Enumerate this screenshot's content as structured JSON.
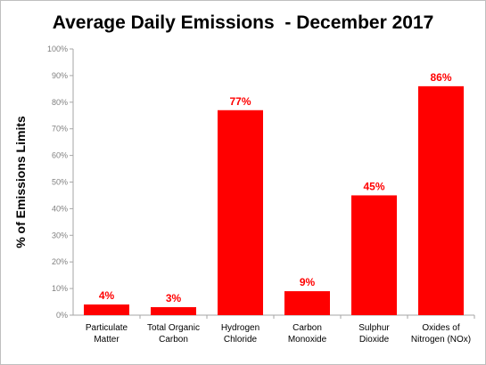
{
  "chart_data": {
    "type": "bar",
    "title": "Average Daily Emissions  - December 2017",
    "ylabel": "% of Emissions Limits",
    "xlabel": "",
    "categories": [
      [
        "Particulate",
        "Matter"
      ],
      [
        "Total Organic",
        "Carbon"
      ],
      [
        "Hydrogen",
        "Chloride"
      ],
      [
        "Carbon",
        "Monoxide"
      ],
      [
        "Sulphur",
        "Dioxide"
      ],
      [
        "Oxides of",
        "Nitrogen (NOx)"
      ]
    ],
    "values": [
      4,
      3,
      77,
      9,
      45,
      86
    ],
    "data_labels": [
      "4%",
      "3%",
      "77%",
      "9%",
      "45%",
      "86%"
    ],
    "ylim": [
      0,
      100
    ],
    "yticks": [
      0,
      10,
      20,
      30,
      40,
      50,
      60,
      70,
      80,
      90,
      100
    ],
    "ytick_labels": [
      "0%",
      "10%",
      "20%",
      "30%",
      "40%",
      "50%",
      "60%",
      "70%",
      "80%",
      "90%",
      "100%"
    ],
    "bar_color": "#ff0000",
    "label_color": "#ff0000",
    "grid": false,
    "legend": "none"
  }
}
